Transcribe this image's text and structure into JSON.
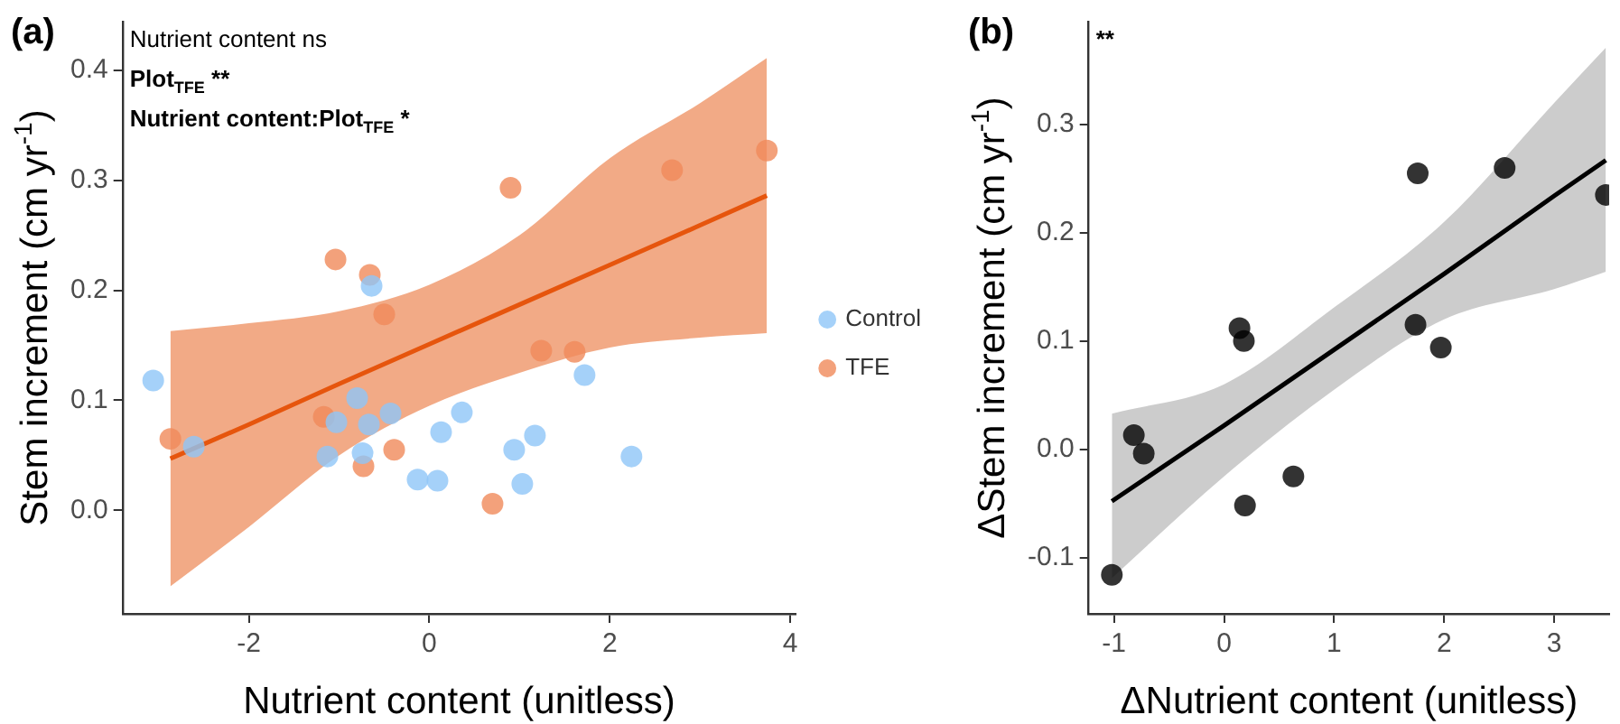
{
  "chart_data": [
    {
      "type": "scatter",
      "title": "(a)",
      "xlabel": "Nutrient content (unitless)",
      "ylabel": "Stem increment (cm yr$^{-1}$)",
      "annotations": [
        "Nutrient content ns",
        "Plot$_{TFE}$ **",
        "Nutrient content:Plot$_{TFE}$ *"
      ],
      "series": [
        {
          "name": "Control",
          "color": "#8ec5f7",
          "marker": "circle",
          "x": [
            -3.06,
            -2.61,
            -0.8,
            -1.03,
            -1.13,
            -0.67,
            -0.74,
            -0.43,
            -0.64,
            -0.13,
            0.09,
            0.13,
            0.36,
            0.94,
            1.03,
            1.17,
            1.72,
            2.24
          ],
          "values": [
            0.118,
            0.058,
            0.102,
            0.08,
            0.049,
            0.078,
            0.052,
            0.088,
            0.204,
            0.028,
            0.027,
            0.071,
            0.089,
            0.055,
            0.024,
            0.068,
            0.123,
            0.049
          ]
        },
        {
          "name": "TFE",
          "color": "#f08a5a",
          "marker": "circle",
          "x": [
            -2.87,
            -1.17,
            -1.04,
            -0.66,
            -0.5,
            -0.73,
            -0.39,
            0.9,
            0.7,
            1.24,
            1.61,
            2.69,
            3.74
          ],
          "values": [
            0.065,
            0.085,
            0.228,
            0.214,
            0.178,
            0.04,
            0.055,
            0.293,
            0.006,
            0.145,
            0.144,
            0.309,
            0.327
          ]
        },
        {
          "type": "line",
          "color": "#e6550d",
          "marker": "none",
          "x": [
            -2.87,
            -2,
            -1,
            0,
            1,
            2,
            3,
            3.74
          ],
          "values": [
            0.047,
            0.078,
            0.115,
            0.151,
            0.187,
            0.223,
            0.259,
            0.286
          ],
          "lower": [
            -0.069,
            -0.015,
            0.05,
            0.095,
            0.125,
            0.148,
            0.157,
            0.161
          ],
          "upper": [
            0.163,
            0.17,
            0.181,
            0.205,
            0.25,
            0.32,
            0.37,
            0.411
          ]
        }
      ],
      "xlim": [
        -3.4,
        4.06
      ],
      "xticks": [
        -2,
        0,
        2,
        4
      ],
      "ylim": [
        -0.094,
        0.444
      ],
      "yticks": [
        {
          "value": 0,
          "label": "0.0"
        },
        0.1,
        0.2,
        0.3,
        0.4
      ],
      "grid": false,
      "legend": "right"
    },
    {
      "type": "scatter",
      "title": "(b)",
      "xlabel": "ΔNutrient content (unitless)",
      "ylabel": "ΔStem increment (cm yr$^{-1}$)",
      "annotations": [
        "**"
      ],
      "series": [
        {
          "color": "#000000",
          "marker": "circle",
          "x": [
            -1.02,
            -0.82,
            -0.73,
            0.14,
            0.18,
            0.19,
            0.63,
            1.76,
            1.74,
            1.97,
            2.55,
            3.47
          ],
          "values": [
            -0.116,
            0.013,
            -0.004,
            0.112,
            0.1,
            -0.052,
            -0.025,
            0.255,
            0.115,
            0.094,
            0.26,
            0.235
          ]
        },
        {
          "type": "line",
          "color": "#000000",
          "marker": "none",
          "x": [
            -1.02,
            0,
            1,
            2,
            3,
            3.47
          ],
          "values": [
            -0.048,
            0.022,
            0.092,
            0.162,
            0.234,
            0.267
          ],
          "lower": [
            -0.119,
            -0.025,
            0.055,
            0.12,
            0.148,
            0.164
          ],
          "upper": [
            0.033,
            0.06,
            0.131,
            0.21,
            0.32,
            0.371
          ]
        }
      ],
      "xlim": [
        -1.23,
        3.5
      ],
      "xticks": [
        -1,
        0,
        1,
        2,
        3
      ],
      "ylim": [
        -0.152,
        0.395
      ],
      "yticks": [
        -0.1,
        {
          "value": 0,
          "label": "0.0"
        },
        0.1,
        0.2,
        0.3
      ],
      "grid": false,
      "legend": false
    }
  ]
}
